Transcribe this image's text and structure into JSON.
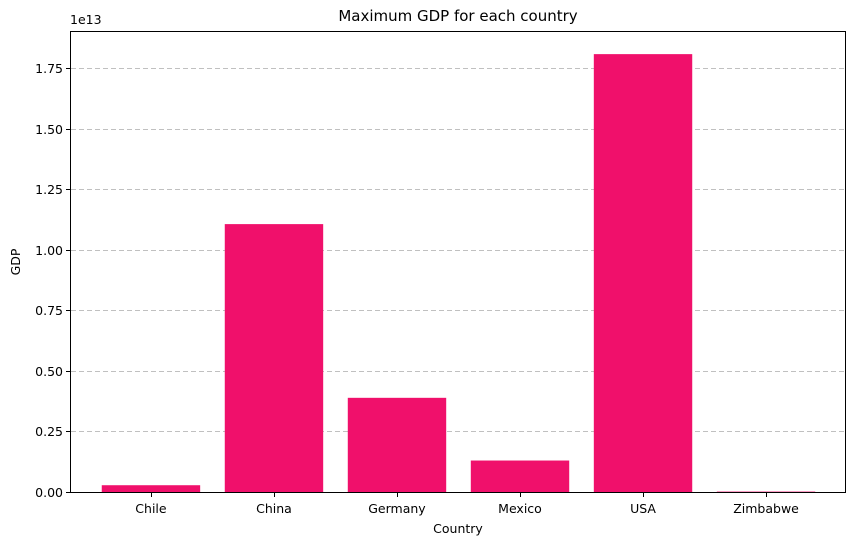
{
  "chart_data": {
    "type": "bar",
    "title": "Maximum GDP for each country",
    "xlabel": "Country",
    "ylabel": "GDP",
    "y_offset_label": "1e13",
    "categories": [
      "Chile",
      "China",
      "Germany",
      "Mexico",
      "USA",
      "Zimbabwe"
    ],
    "values": [
      280000000000.0,
      11065000000000.0,
      3890000000000.0,
      1300000000000.0,
      18086000000000.0,
      17000000000.0
    ],
    "ylim": [
      0,
      19000000000000.0
    ],
    "yticks": [
      0,
      2500000000000.0,
      5000000000000.0,
      7500000000000.0,
      10000000000000.0,
      12500000000000.0,
      15000000000000.0,
      17500000000000.0
    ],
    "ytick_labels": [
      "0.00",
      "0.25",
      "0.50",
      "0.75",
      "1.00",
      "1.25",
      "1.50",
      "1.75"
    ],
    "grid": "y-dashed",
    "bar_color": "#f0106b"
  }
}
